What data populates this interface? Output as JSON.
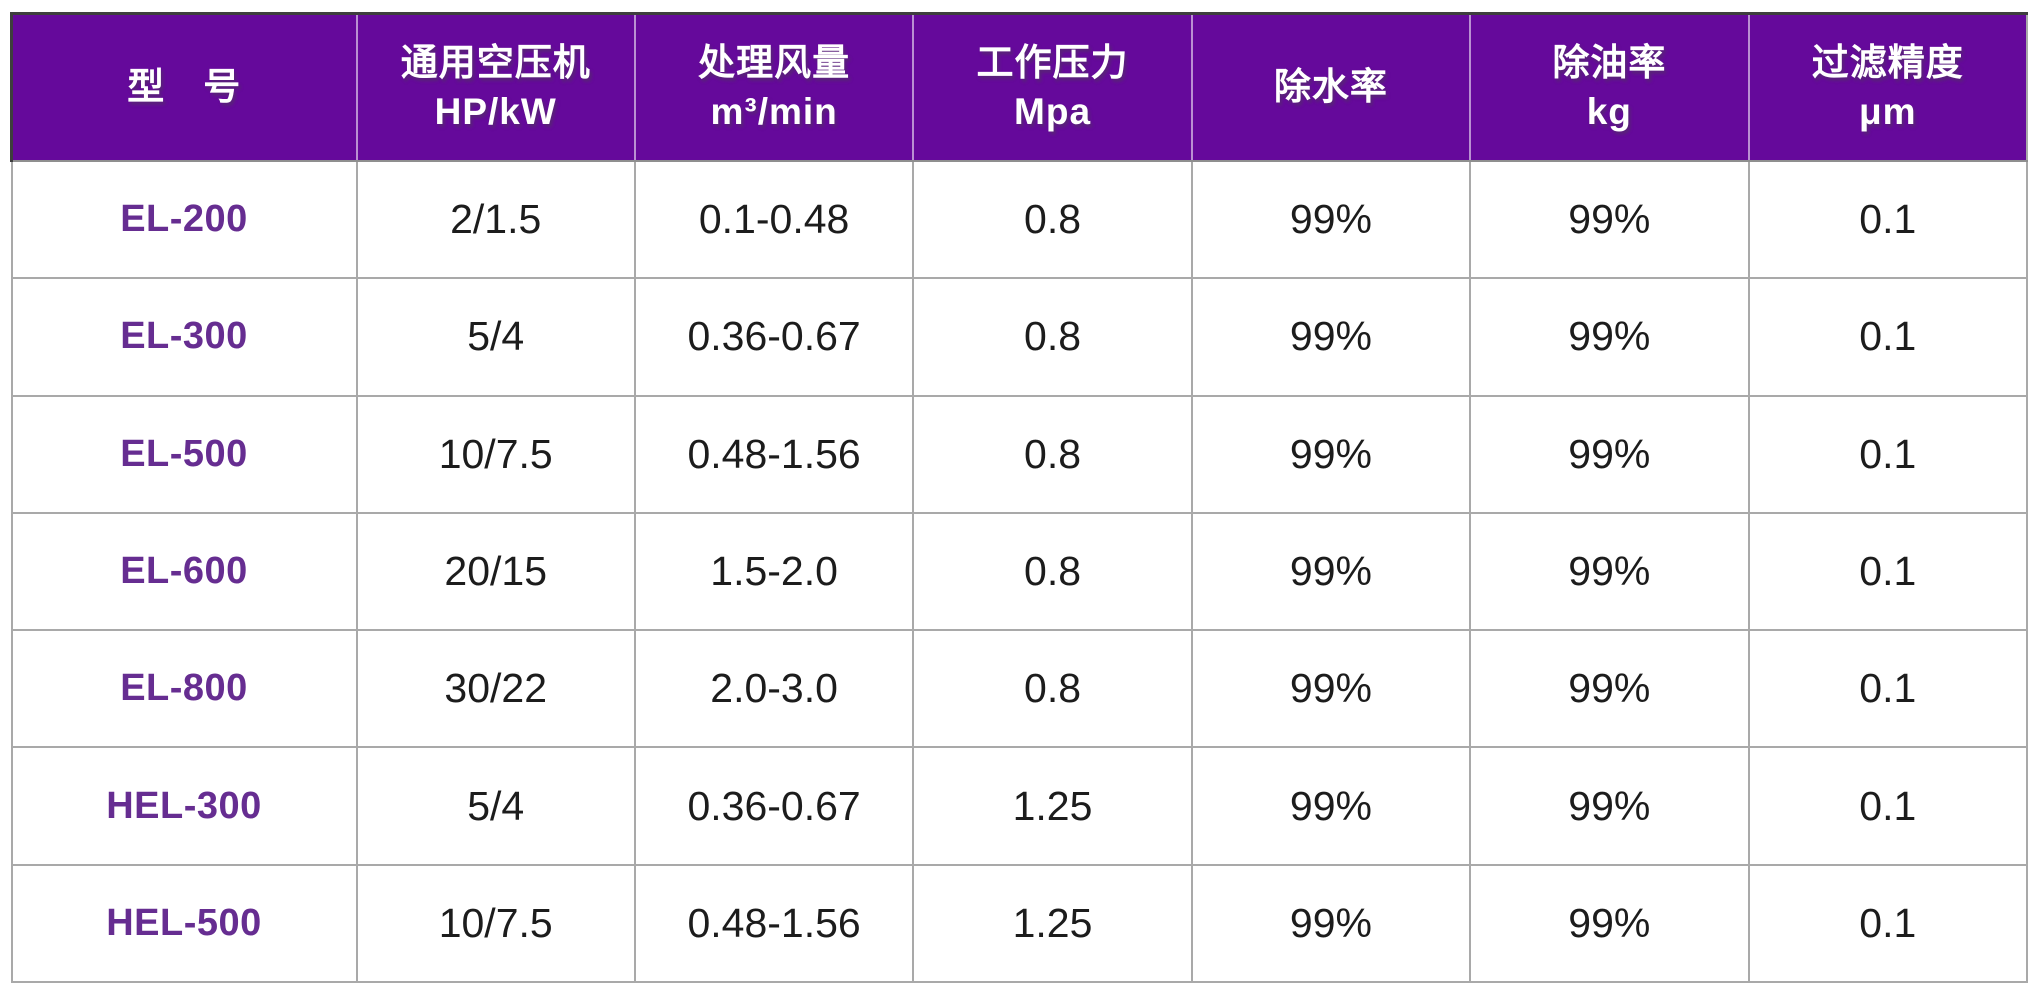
{
  "colors": {
    "header_bg": "#65099B",
    "header_text": "#FFFFFF",
    "model_text": "#662D91",
    "body_text": "#1C1C1C",
    "grid_line": "#A9A9A9",
    "header_outer_border": "#3E3E3E"
  },
  "table": {
    "columns": [
      {
        "label": "型　号",
        "sub": ""
      },
      {
        "label": "通用空压机",
        "sub": "HP/kW"
      },
      {
        "label": "处理风量",
        "sub": "m³/min"
      },
      {
        "label": "工作压力",
        "sub": "Mpa"
      },
      {
        "label": "除水率",
        "sub": ""
      },
      {
        "label": "除油率",
        "sub": "kg"
      },
      {
        "label": "过滤精度",
        "sub": "μm"
      }
    ],
    "rows": [
      {
        "model": "EL-200",
        "hp_kw": "2/1.5",
        "flow": "0.1-0.48",
        "pressure": "0.8",
        "water": "99%",
        "oil": "99%",
        "precision": "0.1"
      },
      {
        "model": "EL-300",
        "hp_kw": "5/4",
        "flow": "0.36-0.67",
        "pressure": "0.8",
        "water": "99%",
        "oil": "99%",
        "precision": "0.1"
      },
      {
        "model": "EL-500",
        "hp_kw": "10/7.5",
        "flow": "0.48-1.56",
        "pressure": "0.8",
        "water": "99%",
        "oil": "99%",
        "precision": "0.1"
      },
      {
        "model": "EL-600",
        "hp_kw": "20/15",
        "flow": "1.5-2.0",
        "pressure": "0.8",
        "water": "99%",
        "oil": "99%",
        "precision": "0.1"
      },
      {
        "model": "EL-800",
        "hp_kw": "30/22",
        "flow": "2.0-3.0",
        "pressure": "0.8",
        "water": "99%",
        "oil": "99%",
        "precision": "0.1"
      },
      {
        "model": "HEL-300",
        "hp_kw": "5/4",
        "flow": "0.36-0.67",
        "pressure": "1.25",
        "water": "99%",
        "oil": "99%",
        "precision": "0.1"
      },
      {
        "model": "HEL-500",
        "hp_kw": "10/7.5",
        "flow": "0.48-1.56",
        "pressure": "1.25",
        "water": "99%",
        "oil": "99%",
        "precision": "0.1"
      }
    ]
  }
}
